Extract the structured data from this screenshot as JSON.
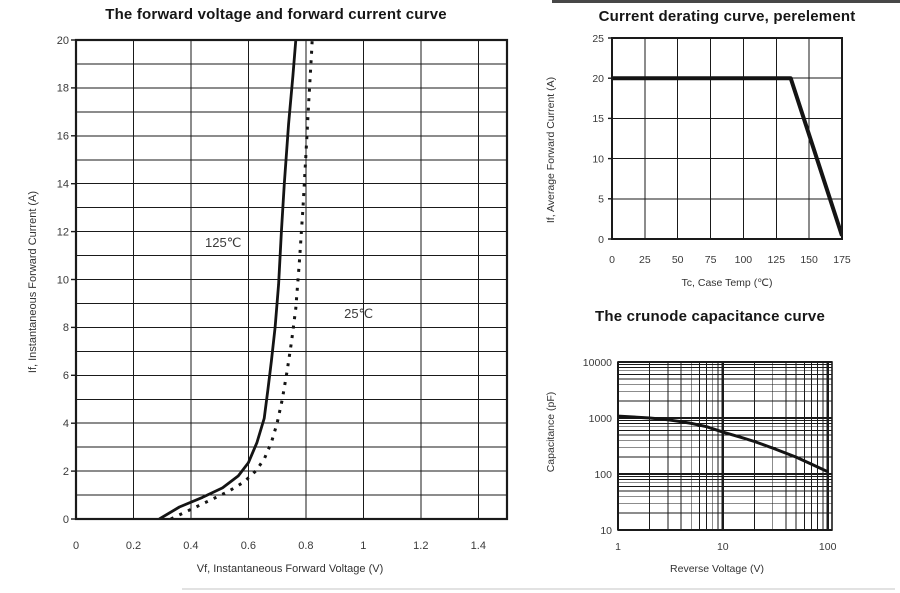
{
  "page": {
    "background": "#ffffff",
    "line_color": "#1a1a1a",
    "text_color": "#333333"
  },
  "chart_data": [
    {
      "id": "forward",
      "type": "line",
      "title": "The forward voltage and forward current curve",
      "xlabel": "Vf, Instantaneous Forward Voltage (V)",
      "ylabel": "If, Instantaneous Forward Current (A)",
      "xscale": "linear",
      "yscale": "linear",
      "xlim": [
        0,
        1.5
      ],
      "ylim": [
        0,
        20
      ],
      "xgrid_step": 0.2,
      "ygrid_step": 1,
      "xticks": [
        0,
        0.2,
        0.4,
        0.6,
        0.8,
        1,
        1.2,
        1.4
      ],
      "xtick_labels": [
        "0",
        "0.2",
        "0.4",
        "0.6",
        "0.8",
        "1",
        "1.2",
        "1.4"
      ],
      "yticks": [
        0,
        2,
        4,
        6,
        8,
        10,
        12,
        14,
        16,
        18,
        20
      ],
      "ytick_labels": [
        "0",
        "2",
        "4",
        "6",
        "8",
        "10",
        "12",
        "14",
        "16",
        "18",
        "20"
      ],
      "grid": true,
      "series": [
        {
          "name": "125C",
          "label": "125℃",
          "label_pos": [
            0.449,
            11.35
          ],
          "style": "solid",
          "points": [
            [
              0.29,
              0
            ],
            [
              0.36,
              0.5
            ],
            [
              0.44,
              0.9
            ],
            [
              0.51,
              1.3
            ],
            [
              0.565,
              1.8
            ],
            [
              0.6,
              2.35
            ],
            [
              0.63,
              3.2
            ],
            [
              0.655,
              4.2
            ],
            [
              0.668,
              5.4
            ],
            [
              0.68,
              6.6
            ],
            [
              0.693,
              8.0
            ],
            [
              0.705,
              9.8
            ],
            [
              0.715,
              12.0
            ],
            [
              0.725,
              14.0
            ],
            [
              0.74,
              16.5
            ],
            [
              0.755,
              18.5
            ],
            [
              0.775,
              21.5
            ]
          ]
        },
        {
          "name": "25C",
          "label": "25℃",
          "label_pos": [
            0.933,
            8.39
          ],
          "style": "dashed",
          "points": [
            [
              0.33,
              0
            ],
            [
              0.4,
              0.4
            ],
            [
              0.47,
              0.8
            ],
            [
              0.53,
              1.15
            ],
            [
              0.585,
              1.55
            ],
            [
              0.625,
              2.0
            ],
            [
              0.655,
              2.5
            ],
            [
              0.68,
              3.2
            ],
            [
              0.7,
              4.0
            ],
            [
              0.718,
              5.0
            ],
            [
              0.735,
              6.2
            ],
            [
              0.75,
              7.4
            ],
            [
              0.765,
              8.8
            ],
            [
              0.778,
              10.8
            ],
            [
              0.79,
              13.0
            ],
            [
              0.8,
              15.2
            ],
            [
              0.81,
              17.4
            ],
            [
              0.82,
              19.5
            ],
            [
              0.828,
              21.5
            ]
          ]
        }
      ]
    },
    {
      "id": "derating",
      "type": "line",
      "title": "Current derating curve, perelement",
      "xlabel": "Tc, Case Temp (℃)",
      "ylabel": "If, Average Forward Current (A)",
      "xscale": "linear",
      "yscale": "linear",
      "xlim": [
        0,
        175
      ],
      "ylim": [
        0,
        25
      ],
      "xgrid_step": 25,
      "ygrid_step": 5,
      "xticks": [
        0,
        25,
        50,
        75,
        100,
        125,
        150,
        175
      ],
      "xtick_labels": [
        "0",
        "25",
        "50",
        "75",
        "100",
        "125",
        "150",
        "175"
      ],
      "yticks": [
        0,
        5,
        10,
        15,
        20,
        25
      ],
      "ytick_labels": [
        "0",
        "5",
        "10",
        "15",
        "20",
        "25"
      ],
      "grid": true,
      "series": [
        {
          "name": "max-average-forward-current",
          "style": "solid-thick",
          "points": [
            [
              0,
              20
            ],
            [
              136,
              20
            ],
            [
              175,
              0.4
            ]
          ]
        }
      ]
    },
    {
      "id": "capacitance",
      "type": "line",
      "title": "The crunode capacitance curve",
      "xlabel": "Reverse Voltage (V)",
      "ylabel": "Capacitance (pF)",
      "xscale": "log",
      "yscale": "log",
      "xlim": [
        1,
        110
      ],
      "ylim": [
        10,
        10000
      ],
      "xticks": [
        1,
        10,
        100
      ],
      "xtick_labels": [
        "1",
        "10",
        "100"
      ],
      "yticks": [
        10,
        100,
        1000,
        10000
      ],
      "ytick_labels": [
        "10",
        "100",
        "1000",
        "10000"
      ],
      "grid": true,
      "series": [
        {
          "name": "junction-capacitance",
          "style": "solid-thick",
          "points": [
            [
              1,
              1080
            ],
            [
              2,
              1000
            ],
            [
              3,
              930
            ],
            [
              4,
              860
            ],
            [
              5,
              800
            ],
            [
              7,
              700
            ],
            [
              10,
              560
            ],
            [
              15,
              450
            ],
            [
              20,
              380
            ],
            [
              30,
              290
            ],
            [
              50,
              200
            ],
            [
              70,
              150
            ],
            [
              100,
              110
            ]
          ]
        }
      ]
    }
  ]
}
